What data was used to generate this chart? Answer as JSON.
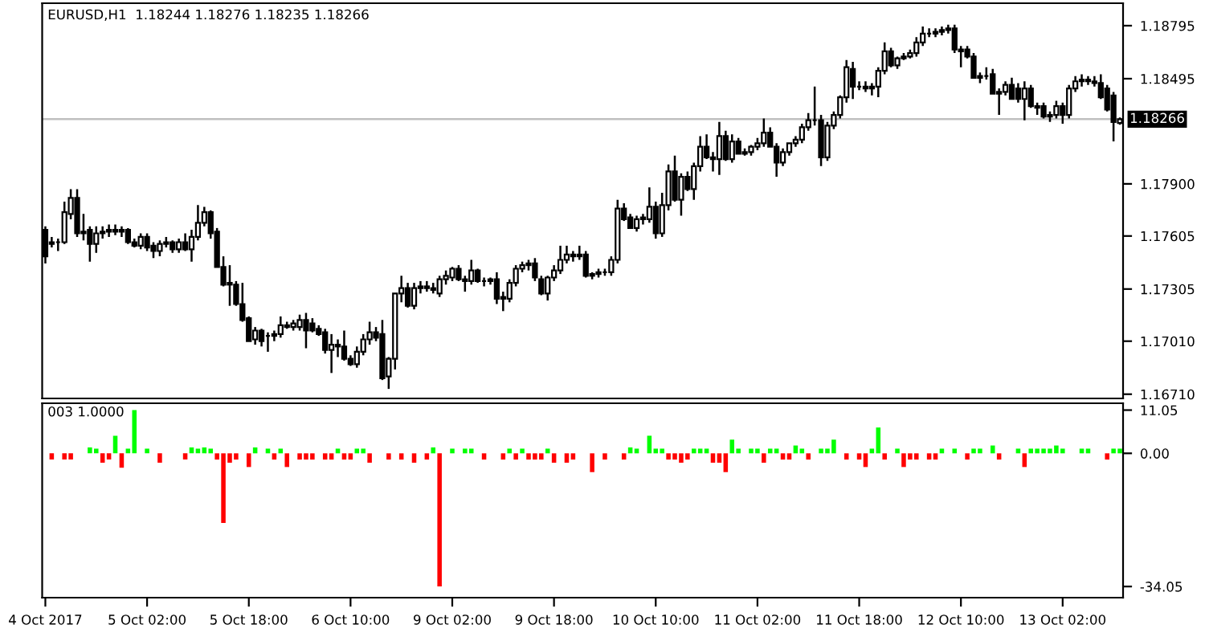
{
  "chart_data": [
    {
      "type": "candlestick",
      "title": "EURUSD,H1  1.18244 1.18276 1.18235 1.18266",
      "color": "#000000",
      "tick_labels": "y",
      "grid": false,
      "categories": [
        null,
        null,
        null,
        null,
        null,
        null,
        null,
        null,
        null,
        null,
        null,
        null,
        null,
        null,
        null,
        null,
        null,
        null,
        null,
        null,
        null,
        null,
        null,
        null,
        null,
        null,
        null,
        null,
        null,
        null,
        null,
        null,
        null,
        null,
        null,
        null,
        null,
        null,
        null,
        null,
        null,
        null,
        null,
        null,
        null,
        null,
        null,
        null,
        null,
        null,
        null,
        null,
        null,
        null,
        null,
        null,
        null,
        null,
        null,
        null,
        null,
        null,
        null,
        null,
        null,
        null,
        null,
        null,
        null,
        null,
        null,
        null,
        null,
        null,
        null,
        null,
        null,
        null,
        null,
        null,
        null,
        null,
        null,
        null,
        null,
        null,
        null,
        null,
        null,
        null,
        null,
        null,
        null,
        null,
        null,
        null,
        null,
        null,
        null,
        null,
        null,
        null,
        null,
        null,
        null,
        null,
        null,
        null,
        null,
        null,
        null,
        null,
        null,
        null,
        null,
        null,
        null,
        null,
        null,
        null,
        null,
        null,
        null,
        null,
        null,
        null,
        null,
        null,
        null,
        null,
        null,
        null,
        null,
        null,
        null,
        null,
        null,
        null,
        null,
        null,
        null,
        null,
        null,
        null,
        null,
        null,
        null,
        null,
        null,
        null,
        null,
        null,
        null,
        null,
        null,
        null,
        null,
        null,
        null,
        null,
        null,
        null,
        null,
        null,
        null,
        null,
        null,
        null,
        null,
        null
      ],
      "ylim": [
        1.16686,
        1.18922
      ],
      "yticks": [
        {
          "value": 1.1671,
          "label": "1.16710"
        },
        {
          "value": 1.1701,
          "label": "1.17010"
        },
        {
          "value": 1.17305,
          "label": "1.17305"
        },
        {
          "value": 1.17605,
          "label": "1.17605"
        },
        {
          "value": 1.179,
          "label": "1.17900"
        },
        {
          "value": 1.18495,
          "label": "1.18495"
        },
        {
          "value": 1.18795,
          "label": "1.18795"
        }
      ],
      "ref_lines": [
        {
          "axis": "y",
          "value": 1.18266,
          "label": "1.18266",
          "color": "#c0c0c0"
        }
      ],
      "ohlc": [
        [
          1.1764,
          1.1766,
          1.1745,
          1.1749
        ],
        [
          1.1756,
          1.176,
          1.1754,
          1.1757
        ],
        [
          1.1757,
          1.1759,
          1.1752,
          1.1757
        ],
        [
          1.1757,
          1.178,
          1.1756,
          1.1774
        ],
        [
          1.1773,
          1.1787,
          1.177,
          1.1782
        ],
        [
          1.1782,
          1.1787,
          1.176,
          1.1762
        ],
        [
          1.1762,
          1.1773,
          1.1758,
          1.1763
        ],
        [
          1.1764,
          1.1766,
          1.1746,
          1.1756
        ],
        [
          1.1756,
          1.1766,
          1.1751,
          1.1762
        ],
        [
          1.1762,
          1.1766,
          1.1759,
          1.1763
        ],
        [
          1.1763,
          1.1767,
          1.176,
          1.1764
        ],
        [
          1.1764,
          1.1767,
          1.1761,
          1.1763
        ],
        [
          1.1763,
          1.1766,
          1.176,
          1.1764
        ],
        [
          1.1764,
          1.1765,
          1.1756,
          1.1757
        ],
        [
          1.1757,
          1.1759,
          1.1754,
          1.1755
        ],
        [
          1.1755,
          1.1762,
          1.1753,
          1.176
        ],
        [
          1.176,
          1.1762,
          1.1752,
          1.1754
        ],
        [
          1.1755,
          1.1757,
          1.1748,
          1.1752
        ],
        [
          1.1752,
          1.1758,
          1.1749,
          1.1756
        ],
        [
          1.1756,
          1.176,
          1.1754,
          1.1757
        ],
        [
          1.1757,
          1.1758,
          1.1751,
          1.1753
        ],
        [
          1.1753,
          1.1759,
          1.1751,
          1.1757
        ],
        [
          1.1757,
          1.1762,
          1.1752,
          1.1753
        ],
        [
          1.1753,
          1.1764,
          1.1746,
          1.176
        ],
        [
          1.176,
          1.1778,
          1.1758,
          1.1768
        ],
        [
          1.1768,
          1.1777,
          1.1766,
          1.1774
        ],
        [
          1.1774,
          1.1775,
          1.1759,
          1.1762
        ],
        [
          1.1763,
          1.1765,
          1.1743,
          1.1743
        ],
        [
          1.1743,
          1.1749,
          1.1732,
          1.1733
        ],
        [
          1.1734,
          1.1744,
          1.1721,
          1.1733
        ],
        [
          1.1733,
          1.1735,
          1.1721,
          1.1722
        ],
        [
          1.1722,
          1.1734,
          1.1712,
          1.1713
        ],
        [
          1.1714,
          1.1715,
          1.1701,
          1.1701
        ],
        [
          1.1702,
          1.1709,
          1.1699,
          1.1707
        ],
        [
          1.1707,
          1.1708,
          1.1698,
          1.1701
        ],
        [
          1.1704,
          1.1706,
          1.1695,
          1.1704
        ],
        [
          1.1704,
          1.1707,
          1.1701,
          1.1705
        ],
        [
          1.1705,
          1.1715,
          1.1703,
          1.171
        ],
        [
          1.171,
          1.1712,
          1.1708,
          1.1709
        ],
        [
          1.1709,
          1.1713,
          1.1707,
          1.1711
        ],
        [
          1.1709,
          1.1716,
          1.1707,
          1.1713
        ],
        [
          1.1713,
          1.1717,
          1.1697,
          1.1707
        ],
        [
          1.1711,
          1.1714,
          1.1706,
          1.1707
        ],
        [
          1.1708,
          1.171,
          1.1704,
          1.1705
        ],
        [
          1.1706,
          1.1708,
          1.1694,
          1.1696
        ],
        [
          1.1696,
          1.1705,
          1.1683,
          1.1699
        ],
        [
          1.1699,
          1.1702,
          1.1692,
          1.1698
        ],
        [
          1.1698,
          1.1707,
          1.169,
          1.1691
        ],
        [
          1.1691,
          1.1693,
          1.1687,
          1.1688
        ],
        [
          1.1688,
          1.1698,
          1.1686,
          1.1695
        ],
        [
          1.1695,
          1.1705,
          1.1693,
          1.1702
        ],
        [
          1.1702,
          1.1712,
          1.1699,
          1.1706
        ],
        [
          1.1706,
          1.1709,
          1.1701,
          1.1703
        ],
        [
          1.1705,
          1.1713,
          1.1679,
          1.168
        ],
        [
          1.1681,
          1.1692,
          1.1674,
          1.1691
        ],
        [
          1.1691,
          1.1728,
          1.1685,
          1.1728
        ],
        [
          1.1728,
          1.1738,
          1.1723,
          1.1731
        ],
        [
          1.1731,
          1.1734,
          1.172,
          1.1721
        ],
        [
          1.1721,
          1.1734,
          1.1719,
          1.1731
        ],
        [
          1.1731,
          1.1735,
          1.1728,
          1.1732
        ],
        [
          1.1732,
          1.1735,
          1.1729,
          1.1731
        ],
        [
          1.1731,
          1.1734,
          1.1728,
          1.173
        ],
        [
          1.1728,
          1.1738,
          1.1726,
          1.1736
        ],
        [
          1.1736,
          1.1741,
          1.1733,
          1.1738
        ],
        [
          1.1737,
          1.1743,
          1.1735,
          1.1742
        ],
        [
          1.1742,
          1.1744,
          1.1735,
          1.1736
        ],
        [
          1.1736,
          1.1738,
          1.1729,
          1.1735
        ],
        [
          1.1735,
          1.1747,
          1.1733,
          1.1741
        ],
        [
          1.1741,
          1.1742,
          1.1734,
          1.1735
        ],
        [
          1.1735,
          1.1737,
          1.1732,
          1.1735
        ],
        [
          1.1735,
          1.1737,
          1.1733,
          1.1736
        ],
        [
          1.1736,
          1.174,
          1.1722,
          1.1725
        ],
        [
          1.1726,
          1.1729,
          1.1718,
          1.1725
        ],
        [
          1.1725,
          1.1736,
          1.1723,
          1.1734
        ],
        [
          1.1734,
          1.1744,
          1.1732,
          1.1742
        ],
        [
          1.1742,
          1.1746,
          1.174,
          1.1744
        ],
        [
          1.1744,
          1.1747,
          1.1741,
          1.1745
        ],
        [
          1.1745,
          1.1748,
          1.1735,
          1.1737
        ],
        [
          1.1736,
          1.1738,
          1.1727,
          1.1728
        ],
        [
          1.1728,
          1.1738,
          1.1724,
          1.1737
        ],
        [
          1.1737,
          1.1744,
          1.1735,
          1.1741
        ],
        [
          1.1741,
          1.1755,
          1.1739,
          1.1747
        ],
        [
          1.1747,
          1.1755,
          1.1745,
          1.175
        ],
        [
          1.175,
          1.1752,
          1.1746,
          1.1749
        ],
        [
          1.1749,
          1.1755,
          1.1747,
          1.175
        ],
        [
          1.175,
          1.1752,
          1.1737,
          1.1738
        ],
        [
          1.1738,
          1.174,
          1.1736,
          1.1739
        ],
        [
          1.1739,
          1.1742,
          1.1737,
          1.174
        ],
        [
          1.174,
          1.1742,
          1.1738,
          1.174
        ],
        [
          1.174,
          1.1749,
          1.1738,
          1.1747
        ],
        [
          1.1747,
          1.1781,
          1.1745,
          1.1776
        ],
        [
          1.1776,
          1.1779,
          1.1769,
          1.177
        ],
        [
          1.1771,
          1.1773,
          1.1765,
          1.1765
        ],
        [
          1.1765,
          1.1772,
          1.1763,
          1.177
        ],
        [
          1.177,
          1.1773,
          1.1767,
          1.1771
        ],
        [
          1.177,
          1.1788,
          1.1768,
          1.1777
        ],
        [
          1.1777,
          1.178,
          1.1759,
          1.1762
        ],
        [
          1.1762,
          1.1785,
          1.176,
          1.1778
        ],
        [
          1.1778,
          1.1801,
          1.1775,
          1.1797
        ],
        [
          1.1797,
          1.1806,
          1.178,
          1.1781
        ],
        [
          1.1781,
          1.1796,
          1.1772,
          1.1794
        ],
        [
          1.1794,
          1.1797,
          1.1786,
          1.1787
        ],
        [
          1.1787,
          1.1802,
          1.1781,
          1.18
        ],
        [
          1.18,
          1.1817,
          1.1797,
          1.1811
        ],
        [
          1.1811,
          1.1818,
          1.1804,
          1.1805
        ],
        [
          1.1805,
          1.1808,
          1.1797,
          1.1804
        ],
        [
          1.1804,
          1.1825,
          1.1795,
          1.1817
        ],
        [
          1.1817,
          1.182,
          1.1803,
          1.1804
        ],
        [
          1.1804,
          1.1818,
          1.1802,
          1.1814
        ],
        [
          1.1814,
          1.1816,
          1.1807,
          1.1807
        ],
        [
          1.1807,
          1.181,
          1.1806,
          1.1808
        ],
        [
          1.1808,
          1.1812,
          1.1806,
          1.1811
        ],
        [
          1.1811,
          1.1816,
          1.1809,
          1.1813
        ],
        [
          1.1813,
          1.1827,
          1.1811,
          1.1819
        ],
        [
          1.1819,
          1.1822,
          1.1811,
          1.1811
        ],
        [
          1.1811,
          1.1813,
          1.1794,
          1.1802
        ],
        [
          1.1802,
          1.181,
          1.18,
          1.1808
        ],
        [
          1.1808,
          1.1813,
          1.1806,
          1.1813
        ],
        [
          1.1813,
          1.1817,
          1.1811,
          1.1815
        ],
        [
          1.1815,
          1.1824,
          1.1813,
          1.1822
        ],
        [
          1.1822,
          1.183,
          1.182,
          1.1826
        ],
        [
          1.1826,
          1.1845,
          1.1823,
          1.1826
        ],
        [
          1.1826,
          1.1829,
          1.18,
          1.1805
        ],
        [
          1.1805,
          1.1825,
          1.1803,
          1.1823
        ],
        [
          1.1823,
          1.1831,
          1.1821,
          1.1829
        ],
        [
          1.1829,
          1.184,
          1.1827,
          1.1839
        ],
        [
          1.1839,
          1.186,
          1.1836,
          1.1856
        ],
        [
          1.1855,
          1.1859,
          1.1838,
          1.1845
        ],
        [
          1.1845,
          1.1848,
          1.1843,
          1.1845
        ],
        [
          1.1845,
          1.1848,
          1.1842,
          1.1844
        ],
        [
          1.1844,
          1.1847,
          1.184,
          1.1845
        ],
        [
          1.1845,
          1.1856,
          1.1839,
          1.1854
        ],
        [
          1.1854,
          1.187,
          1.1852,
          1.1865
        ],
        [
          1.1865,
          1.1867,
          1.1856,
          1.1857
        ],
        [
          1.1857,
          1.1862,
          1.1855,
          1.1861
        ],
        [
          1.1861,
          1.1864,
          1.186,
          1.1862
        ],
        [
          1.1862,
          1.1866,
          1.1861,
          1.1864
        ],
        [
          1.1864,
          1.1873,
          1.1862,
          1.187
        ],
        [
          1.187,
          1.1879,
          1.1868,
          1.1875
        ],
        [
          1.1875,
          1.1878,
          1.1873,
          1.1875
        ],
        [
          1.1875,
          1.1878,
          1.1873,
          1.1876
        ],
        [
          1.1876,
          1.1879,
          1.1874,
          1.1877
        ],
        [
          1.1877,
          1.188,
          1.1875,
          1.1878
        ],
        [
          1.1878,
          1.188,
          1.1864,
          1.1866
        ],
        [
          1.1866,
          1.1868,
          1.1856,
          1.1865
        ],
        [
          1.1866,
          1.1868,
          1.1861,
          1.1862
        ],
        [
          1.1862,
          1.1864,
          1.185,
          1.185
        ],
        [
          1.185,
          1.1853,
          1.1847,
          1.1851
        ],
        [
          1.1851,
          1.1856,
          1.1849,
          1.1851
        ],
        [
          1.1852,
          1.1855,
          1.1841,
          1.1841
        ],
        [
          1.1841,
          1.1844,
          1.1829,
          1.1842
        ],
        [
          1.1842,
          1.1848,
          1.184,
          1.1846
        ],
        [
          1.1846,
          1.185,
          1.1838,
          1.1838
        ],
        [
          1.1844,
          1.1847,
          1.1836,
          1.1838
        ],
        [
          1.1838,
          1.1848,
          1.1826,
          1.1844
        ],
        [
          1.1844,
          1.1846,
          1.1833,
          1.1834
        ],
        [
          1.1834,
          1.1836,
          1.1829,
          1.1833
        ],
        [
          1.1834,
          1.1836,
          1.1827,
          1.1828
        ],
        [
          1.1828,
          1.1831,
          1.1825,
          1.1829
        ],
        [
          1.1829,
          1.1837,
          1.1827,
          1.1834
        ],
        [
          1.1834,
          1.1836,
          1.1824,
          1.1829
        ],
        [
          1.1829,
          1.1846,
          1.1827,
          1.1844
        ],
        [
          1.1844,
          1.1851,
          1.1842,
          1.1848
        ],
        [
          1.1848,
          1.1852,
          1.1845,
          1.1849
        ],
        [
          1.1849,
          1.1851,
          1.1846,
          1.1848
        ],
        [
          1.1848,
          1.1851,
          1.1845,
          1.1847
        ],
        [
          1.1847,
          1.1852,
          1.1838,
          1.1839
        ],
        [
          1.1844,
          1.1846,
          1.1831,
          1.1832
        ],
        [
          1.184,
          1.1842,
          1.1814,
          1.1825
        ],
        [
          1.18244,
          1.18276,
          1.18235,
          1.18266
        ]
      ]
    },
    {
      "type": "bar",
      "title": "003 1.0000",
      "grid": false,
      "categories": [
        "4 Oct 2017",
        null,
        null,
        null,
        null,
        null,
        null,
        null,
        null,
        null,
        null,
        null,
        null,
        null,
        null,
        null,
        "5 Oct 02:00",
        null,
        null,
        null,
        null,
        null,
        null,
        null,
        null,
        null,
        null,
        null,
        null,
        null,
        null,
        null,
        "5 Oct 18:00",
        null,
        null,
        null,
        null,
        null,
        null,
        null,
        null,
        null,
        null,
        null,
        null,
        null,
        null,
        null,
        "6 Oct 10:00",
        null,
        null,
        null,
        null,
        null,
        null,
        null,
        null,
        null,
        null,
        null,
        null,
        null,
        null,
        null,
        "9 Oct 02:00",
        null,
        null,
        null,
        null,
        null,
        null,
        null,
        null,
        null,
        null,
        null,
        null,
        null,
        null,
        null,
        "9 Oct 18:00",
        null,
        null,
        null,
        null,
        null,
        null,
        null,
        null,
        null,
        null,
        null,
        null,
        null,
        null,
        null,
        "10 Oct 10:00",
        null,
        null,
        null,
        null,
        null,
        null,
        null,
        null,
        null,
        null,
        null,
        null,
        null,
        null,
        null,
        "11 Oct 02:00",
        null,
        null,
        null,
        null,
        null,
        null,
        null,
        null,
        null,
        null,
        null,
        null,
        null,
        null,
        null,
        "11 Oct 18:00",
        null,
        null,
        null,
        null,
        null,
        null,
        null,
        null,
        null,
        null,
        null,
        null,
        null,
        null,
        null,
        "12 Oct 10:00",
        null,
        null,
        null,
        null,
        null,
        null,
        null,
        null,
        null,
        null,
        null,
        null,
        null,
        null,
        null,
        "13 Oct 02:00",
        null,
        null,
        null,
        null,
        null,
        null,
        null,
        null,
        null
      ],
      "ylim": [
        -36.9,
        12.8
      ],
      "yticks": [
        {
          "value": 11.05,
          "label": "11.05"
        },
        {
          "value": 0,
          "label": "0.00"
        },
        {
          "value": -34.05,
          "label": "-34.05"
        }
      ],
      "values": [
        null,
        -1.6,
        null,
        -1.6,
        -1.6,
        null,
        null,
        1.5,
        1.2,
        -2.4,
        -1.6,
        4.5,
        -3.7,
        1.2,
        11.05,
        null,
        1.2,
        null,
        -2.4,
        null,
        null,
        null,
        -1.6,
        1.5,
        1.2,
        1.5,
        1.2,
        -1.6,
        -17.8,
        -2.4,
        -1.6,
        null,
        -3.5,
        1.5,
        null,
        1.2,
        -1.6,
        1.2,
        -3.5,
        null,
        -1.6,
        -1.6,
        -1.6,
        null,
        -1.6,
        -1.6,
        1.2,
        -1.6,
        -1.6,
        1.2,
        1.2,
        -2.4,
        null,
        null,
        -1.6,
        null,
        -1.6,
        null,
        -2.4,
        null,
        -1.6,
        1.5,
        -34.05,
        null,
        1.2,
        null,
        1.2,
        1.2,
        null,
        -1.6,
        null,
        null,
        -1.6,
        1.2,
        -1.6,
        1.2,
        -1.6,
        -1.6,
        -1.6,
        1.2,
        -2.4,
        null,
        -2.4,
        -1.6,
        null,
        null,
        -4.8,
        null,
        -1.6,
        null,
        null,
        -1.6,
        1.5,
        1.2,
        null,
        4.5,
        1.2,
        1.2,
        -1.6,
        -1.6,
        -2.4,
        -1.6,
        1.2,
        1.2,
        1.2,
        -2.4,
        -2.4,
        -4.8,
        3.5,
        1.2,
        null,
        1.2,
        1.2,
        -2.4,
        1.2,
        1.2,
        -1.6,
        -1.6,
        2.0,
        1.2,
        -1.6,
        null,
        1.2,
        1.2,
        3.5,
        null,
        -1.6,
        null,
        -1.6,
        -3.5,
        1.2,
        6.6,
        -1.6,
        null,
        1.2,
        -3.5,
        -1.6,
        -1.6,
        null,
        -1.6,
        -1.6,
        1.2,
        null,
        1.2,
        null,
        -1.6,
        1.2,
        1.2,
        null,
        2.0,
        -1.6,
        null,
        null,
        1.2,
        -3.5,
        1.2,
        1.2,
        1.2,
        1.2,
        2.0,
        1.2,
        null,
        null,
        1.2,
        1.2,
        null,
        null,
        -1.6,
        1.2,
        1.2
      ],
      "colors": [
        null,
        "#ff0000",
        null,
        "#ff0000",
        "#ff0000",
        null,
        null,
        "#00ff00",
        "#00ff00",
        "#ff0000",
        "#ff0000",
        "#00ff00",
        "#ff0000",
        "#00ff00",
        "#00ff00",
        null,
        "#00ff00",
        null,
        "#ff0000",
        null,
        null,
        null,
        "#ff0000",
        "#00ff00",
        "#00ff00",
        "#00ff00",
        "#00ff00",
        "#ff0000",
        "#ff0000",
        "#ff0000",
        "#ff0000",
        null,
        "#ff0000",
        "#00ff00",
        null,
        "#00ff00",
        "#ff0000",
        "#00ff00",
        "#ff0000",
        null,
        "#ff0000",
        "#ff0000",
        "#ff0000",
        null,
        "#ff0000",
        "#ff0000",
        "#00ff00",
        "#ff0000",
        "#ff0000",
        "#00ff00",
        "#00ff00",
        "#ff0000",
        null,
        null,
        "#ff0000",
        null,
        "#ff0000",
        null,
        "#ff0000",
        null,
        "#ff0000",
        "#00ff00",
        "#ff0000",
        null,
        "#00ff00",
        null,
        "#00ff00",
        "#00ff00",
        null,
        "#ff0000",
        null,
        null,
        "#ff0000",
        "#00ff00",
        "#ff0000",
        "#00ff00",
        "#ff0000",
        "#ff0000",
        "#ff0000",
        "#00ff00",
        "#ff0000",
        null,
        "#ff0000",
        "#ff0000",
        null,
        null,
        "#ff0000",
        null,
        "#ff0000",
        null,
        null,
        "#ff0000",
        "#00ff00",
        "#00ff00",
        null,
        "#00ff00",
        "#00ff00",
        "#00ff00",
        "#ff0000",
        "#ff0000",
        "#ff0000",
        "#ff0000",
        "#00ff00",
        "#00ff00",
        "#00ff00",
        "#ff0000",
        "#ff0000",
        "#ff0000",
        "#00ff00",
        "#00ff00",
        null,
        "#00ff00",
        "#00ff00",
        "#ff0000",
        "#00ff00",
        "#00ff00",
        "#ff0000",
        "#ff0000",
        "#00ff00",
        "#00ff00",
        "#ff0000",
        null,
        "#00ff00",
        "#00ff00",
        "#00ff00",
        null,
        "#ff0000",
        null,
        "#ff0000",
        "#ff0000",
        "#00ff00",
        "#00ff00",
        "#ff0000",
        null,
        "#00ff00",
        "#ff0000",
        "#ff0000",
        "#ff0000",
        null,
        "#ff0000",
        "#ff0000",
        "#00ff00",
        null,
        "#00ff00",
        null,
        "#ff0000",
        "#00ff00",
        "#00ff00",
        null,
        "#00ff00",
        "#ff0000",
        null,
        null,
        "#00ff00",
        "#ff0000",
        "#00ff00",
        "#00ff00",
        "#00ff00",
        "#00ff00",
        "#00ff00",
        "#00ff00",
        null,
        null,
        "#00ff00",
        "#00ff00",
        null,
        null,
        "#ff0000",
        "#00ff00",
        "#00ff00"
      ]
    }
  ]
}
